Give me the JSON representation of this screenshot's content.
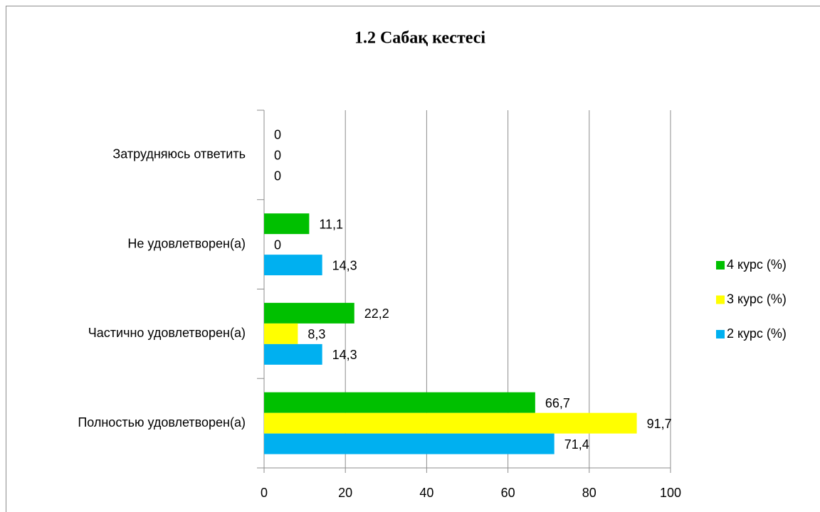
{
  "chart_data": {
    "type": "bar",
    "orientation": "horizontal",
    "title": "1.2 Сабақ кестесі",
    "categories": [
      "Полностью удовлетворен(а)",
      "Частично удовлетворен(а)",
      "Не удовлетворен(а)",
      "Затрудняюсь ответить"
    ],
    "series": [
      {
        "name": "4 курс (%)",
        "color": "#00c000",
        "values": [
          66.7,
          22.2,
          11.1,
          0
        ],
        "value_labels": [
          "66,7",
          "22,2",
          "11,1",
          "0"
        ]
      },
      {
        "name": "3 курс (%)",
        "color": "#ffff00",
        "values": [
          91.7,
          8.3,
          0,
          0
        ],
        "value_labels": [
          "91,7",
          "8,3",
          "0",
          "0"
        ]
      },
      {
        "name": "2 курс (%)",
        "color": "#00b0f0",
        "values": [
          71.4,
          14.3,
          14.3,
          0
        ],
        "value_labels": [
          "71,4",
          "14,3",
          "14,3",
          "0"
        ]
      }
    ],
    "xlim": [
      0,
      100
    ],
    "xticks": [
      0,
      20,
      40,
      60,
      80,
      100
    ],
    "grid": true,
    "legend": "right"
  }
}
